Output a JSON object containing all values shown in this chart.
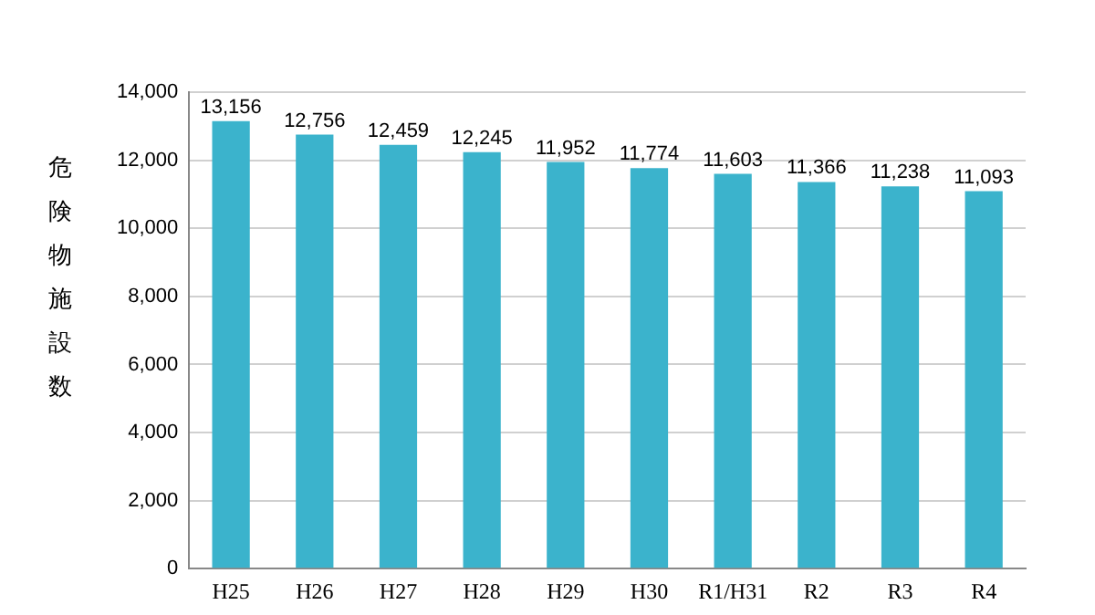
{
  "chart_data": {
    "type": "bar",
    "ylabel": "危険物施設数",
    "categories": [
      "H25",
      "H26",
      "H27",
      "H28",
      "H29",
      "H30",
      "R1/H31",
      "R2",
      "R3",
      "R4"
    ],
    "values": [
      13156,
      12756,
      12459,
      12245,
      11952,
      11774,
      11603,
      11366,
      11238,
      11093
    ],
    "value_labels": [
      "13,156",
      "12,756",
      "12,459",
      "12,245",
      "11,952",
      "11,774",
      "11,603",
      "11,366",
      "11,238",
      "11,093"
    ],
    "color": "#3bb3cc",
    "ylim": [
      0,
      14000
    ],
    "yticks": [
      0,
      {
        "value": 2000,
        "label": "2,000"
      },
      {
        "value": 4000,
        "label": "4,000"
      },
      {
        "value": 6000,
        "label": "6,000"
      },
      {
        "value": 8000,
        "label": "8,000"
      },
      {
        "value": 10000,
        "label": "10,000"
      },
      {
        "value": 12000,
        "label": "12,000"
      },
      {
        "value": 14000,
        "label": "14,000"
      }
    ],
    "grid": "y"
  }
}
